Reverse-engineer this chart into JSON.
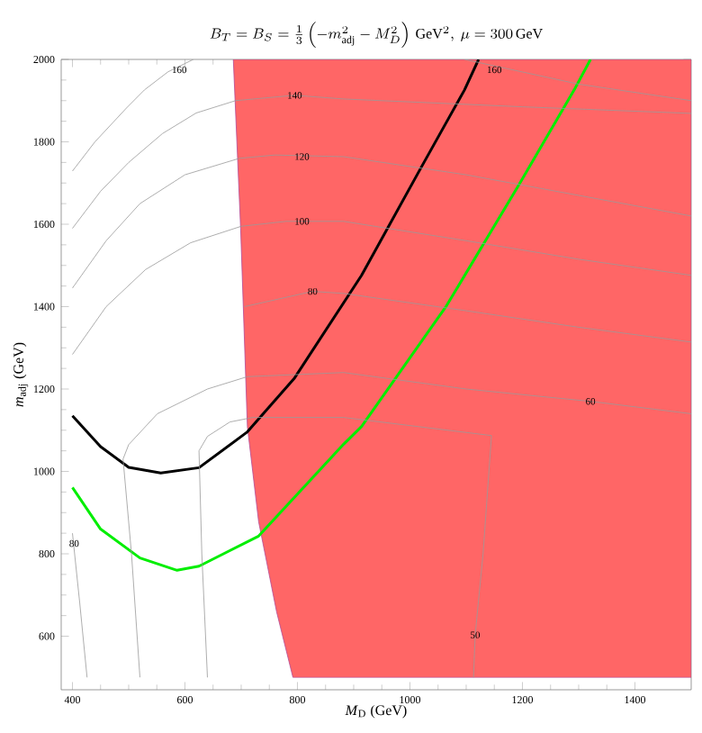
{
  "chart_data": {
    "type": "line",
    "title": "B_T=B_S=\\frac{1}{3}\\left(-m_{\\mathrm{adj}}^2-M_D^2\\right)\\,\\mathrm{GeV}^2,\\ \\mu=300\\,\\mathrm{GeV}",
    "xlabel": "*M*$_{D}$ (GeV)",
    "ylabel": "*m*$_{adj}$ (GeV)",
    "xlim": [
      380,
      1500
    ],
    "ylim": [
      470,
      2000
    ],
    "xticks": [
      400,
      600,
      800,
      1000,
      1200,
      1400
    ],
    "yticks": [
      600,
      800,
      1000,
      1200,
      1400,
      1600,
      1800,
      2000
    ],
    "series": [
      {
        "type": "area",
        "color": "#ff6666",
        "x": [
          686,
          699,
          711,
          731,
          763,
          792,
          1500,
          1500
        ],
        "values": [
          2000,
          1590,
          1109,
          878,
          659,
          500,
          500,
          2000
        ]
      },
      {
        "color": "#000000",
        "x": [
          400,
          450,
          500,
          557,
          625,
          711,
          795,
          914,
          1020,
          1097,
          1122
        ],
        "values": [
          1135,
          1060,
          1010,
          996,
          1009,
          1096,
          1227,
          1476,
          1738,
          1926,
          2000
        ]
      },
      {
        "color": "#00ee00",
        "x": [
          400,
          450,
          520,
          586,
          625,
          731,
          882,
          914,
          1065,
          1193,
          1292,
          1321
        ],
        "values": [
          961,
          860,
          790,
          760,
          770,
          843,
          1066,
          1109,
          1402,
          1694,
          1926,
          2000
        ]
      },
      {
        "type": "line",
        "color": "#999999",
        "x": [
          400,
          440,
          496,
          528,
          570,
          615
        ],
        "values": [
          1729,
          1800,
          1882,
          1926,
          1970,
          2000
        ]
      },
      {
        "type": "line",
        "color": "#999999",
        "x": [
          1097,
          1300,
          1500
        ],
        "values": [
          2000,
          1940,
          1900
        ]
      },
      {
        "type": "line",
        "color": "#999999",
        "x": [
          400,
          450,
          500,
          560,
          620,
          690,
          795,
          882,
          1200,
          1500
        ],
        "values": [
          1590,
          1680,
          1750,
          1820,
          1870,
          1900,
          1913,
          1904,
          1885,
          1869
        ]
      },
      {
        "type": "line",
        "color": "#999999",
        "x": [
          400,
          460,
          520,
          600,
          697,
          760,
          882,
          1100,
          1300,
          1500
        ],
        "values": [
          1445,
          1560,
          1650,
          1720,
          1760,
          1768,
          1764,
          1720,
          1670,
          1620
        ]
      },
      {
        "type": "line",
        "color": "#999999",
        "x": [
          400,
          460,
          530,
          610,
          700,
          780,
          882,
          1100,
          1300,
          1500
        ],
        "values": [
          1284,
          1400,
          1490,
          1555,
          1595,
          1607,
          1607,
          1560,
          1515,
          1476
        ]
      },
      {
        "type": "line",
        "color": "#999999",
        "x": [
          706,
          827,
          882,
          1100,
          1300,
          1500
        ],
        "values": [
          1400,
          1437,
          1432,
          1390,
          1350,
          1314
        ]
      },
      {
        "type": "line",
        "color": "#999999",
        "x": [
          520,
          505,
          490,
          500,
          551,
          640,
          711,
          882,
          1100,
          1321,
          1500
        ],
        "values": [
          500,
          800,
          1030,
          1065,
          1140,
          1200,
          1230,
          1240,
          1200,
          1170,
          1140
        ]
      },
      {
        "type": "line",
        "color": "#999999",
        "x": [
          640,
          630,
          625,
          640,
          680,
          721,
          882,
          1145,
          1130,
          1116,
          1113
        ],
        "values": [
          500,
          800,
          1050,
          1085,
          1120,
          1131,
          1131,
          1087,
          800,
          603,
          500
        ]
      },
      {
        "type": "line",
        "color": "#999999",
        "x": [
          400,
          413,
          426
        ],
        "values": [
          850,
          680,
          500
        ]
      }
    ],
    "annotations": [
      {
        "text": "160",
        "x": 590,
        "y": 1975
      },
      {
        "text": "160",
        "x": 1150,
        "y": 1975
      },
      {
        "text": "140",
        "x": 795,
        "y": 1913
      },
      {
        "text": "120",
        "x": 808,
        "y": 1764
      },
      {
        "text": "100",
        "x": 808,
        "y": 1607
      },
      {
        "text": "80",
        "x": 827,
        "y": 1437
      },
      {
        "text": "60",
        "x": 1321,
        "y": 1170
      },
      {
        "text": "50",
        "x": 1116,
        "y": 603
      },
      {
        "text": "80",
        "x": 403,
        "y": 825
      }
    ]
  }
}
